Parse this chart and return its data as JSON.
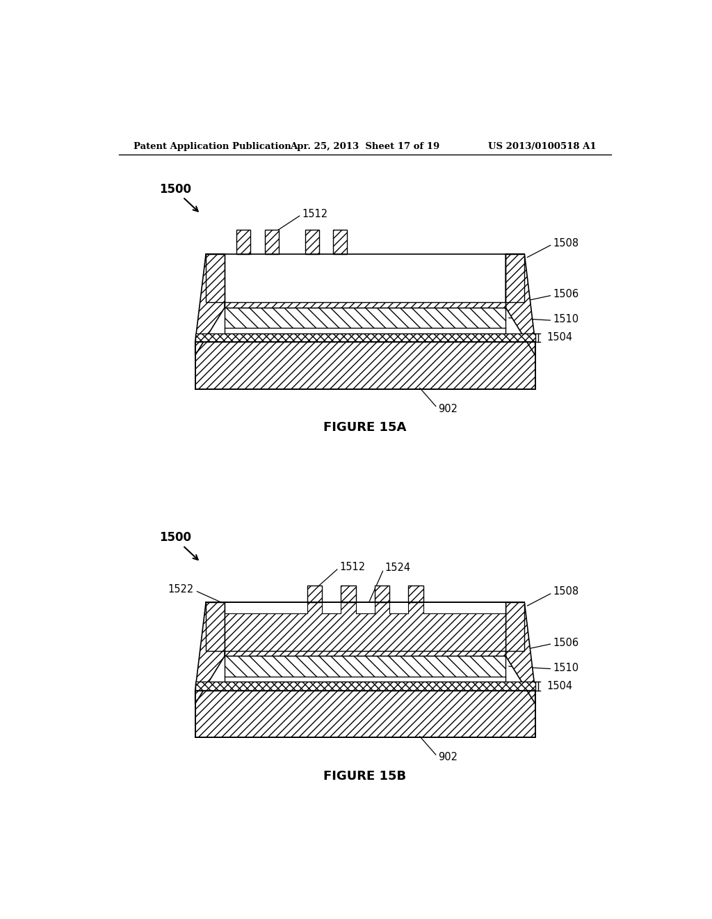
{
  "header_left": "Patent Application Publication",
  "header_mid": "Apr. 25, 2013  Sheet 17 of 19",
  "header_right": "US 2013/0100518 A1",
  "fig_a_label": "FIGURE 15A",
  "fig_b_label": "FIGURE 15B",
  "bg_color": "#ffffff"
}
